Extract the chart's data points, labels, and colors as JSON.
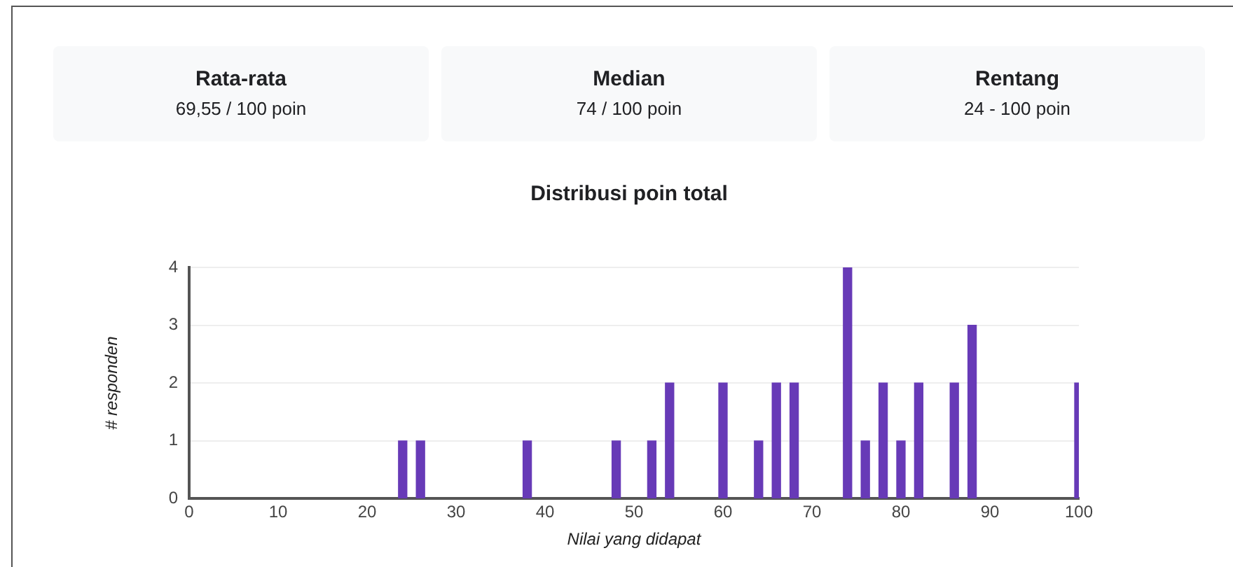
{
  "chart_data": {
    "type": "bar",
    "title": "Distribusi poin total",
    "xlabel": "Nilai yang didapat",
    "ylabel": "# responden",
    "annotations": [
      "Rata-rata",
      "69,55 / 100 poin",
      "Median",
      "74 / 100 poin",
      "Rentang",
      "24 - 100 poin"
    ],
    "x": [
      24,
      26,
      38,
      48,
      52,
      54,
      60,
      64,
      66,
      68,
      74,
      76,
      78,
      80,
      82,
      86,
      88,
      100
    ],
    "values": [
      1,
      1,
      1,
      1,
      1,
      2,
      2,
      1,
      2,
      2,
      4,
      1,
      2,
      1,
      2,
      2,
      3,
      2
    ],
    "color": "#673ab7",
    "xlim": [
      0,
      100
    ],
    "xticks": [
      0,
      10,
      20,
      30,
      40,
      50,
      60,
      70,
      80,
      90,
      100
    ],
    "ylim": [
      0,
      4
    ],
    "yticks": [
      0,
      1,
      2,
      3,
      4
    ],
    "grid": "y",
    "legend": false
  }
}
